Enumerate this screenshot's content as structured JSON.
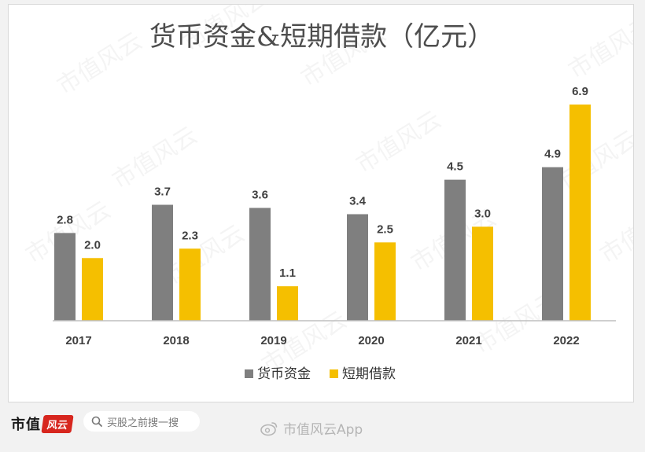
{
  "chart_data": {
    "type": "bar",
    "title": "货币资金&短期借款（亿元）",
    "categories": [
      "2017",
      "2018",
      "2019",
      "2020",
      "2021",
      "2022"
    ],
    "series": [
      {
        "name": "货币资金",
        "color": "#7f7f7f",
        "values": [
          2.8,
          3.7,
          3.6,
          3.4,
          4.5,
          4.9
        ],
        "labels": [
          "2.8",
          "3.7",
          "3.6",
          "3.4",
          "4.5",
          "4.9"
        ]
      },
      {
        "name": "短期借款",
        "color": "#f5bf00",
        "values": [
          2.0,
          2.3,
          1.1,
          2.5,
          3.0,
          6.9
        ],
        "labels": [
          "2.0",
          "2.3",
          "1.1",
          "2.5",
          "3.0",
          "6.9"
        ]
      }
    ],
    "ylim": [
      0,
      7.2
    ],
    "grid": false,
    "legend": "bottom",
    "xlabel": "",
    "ylabel": ""
  },
  "watermark": {
    "text": "市值风云"
  },
  "footer": {
    "brand_text": "市值",
    "brand_seal": "风云",
    "search_placeholder": "买股之前搜一搜",
    "app_watermark": "市值风云App"
  }
}
